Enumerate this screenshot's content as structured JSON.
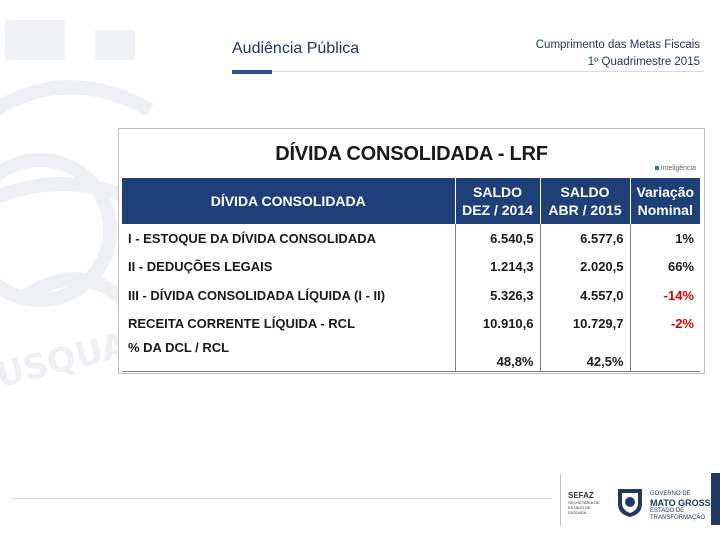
{
  "header": {
    "left_title": "Audiência Pública",
    "right_line1": "Cumprimento das Metas Fiscais",
    "right_line2": "1º Quadrimestre 2015"
  },
  "table": {
    "title": "DÍVIDA CONSOLIDADA - LRF",
    "source_note": "Inteligência",
    "columns": [
      {
        "line1": "DÍVIDA CONSOLIDADA",
        "line2": ""
      },
      {
        "line1": "SALDO",
        "line2": "DEZ / 2014"
      },
      {
        "line1": "SALDO",
        "line2": "ABR / 2015"
      },
      {
        "line1": "Variação",
        "line2": "Nominal"
      }
    ],
    "rows": [
      {
        "label": "I - ESTOQUE DA DÍVIDA CONSOLIDADA",
        "dez2014": "6.540,5",
        "abr2015": "6.577,6",
        "variacao": "1%"
      },
      {
        "label": "II - DEDUÇÕES LEGAIS",
        "dez2014": "1.214,3",
        "abr2015": "2.020,5",
        "variacao": "66%"
      },
      {
        "label": "III - DÍVIDA CONSOLIDADA LÍQUIDA (I - II)",
        "dez2014": "5.326,3",
        "abr2015": "4.557,0",
        "variacao": "-14%"
      },
      {
        "label": "RECEITA CORRENTE LÍQUIDA - RCL",
        "dez2014": "10.910,6",
        "abr2015": "10.729,7",
        "variacao": "-2%"
      },
      {
        "label": "% DA DCL / RCL",
        "dez2014": "48,8%",
        "abr2015": "42,5%",
        "variacao": ""
      }
    ]
  },
  "colors": {
    "header_fill": "#1f3f78",
    "negative": "#e00000",
    "brand_navy": "#1f3864"
  },
  "footer": {
    "sefaz_name": "SEFAZ",
    "sefaz_sub": "SECRETARIA DE ESTADO DE FAZENDA",
    "gov_prefix": "GOVERNO DE",
    "gov_name": "MATO GROSSO",
    "gov_sub": "ESTADO DE TRANSFORMAÇÃO"
  }
}
